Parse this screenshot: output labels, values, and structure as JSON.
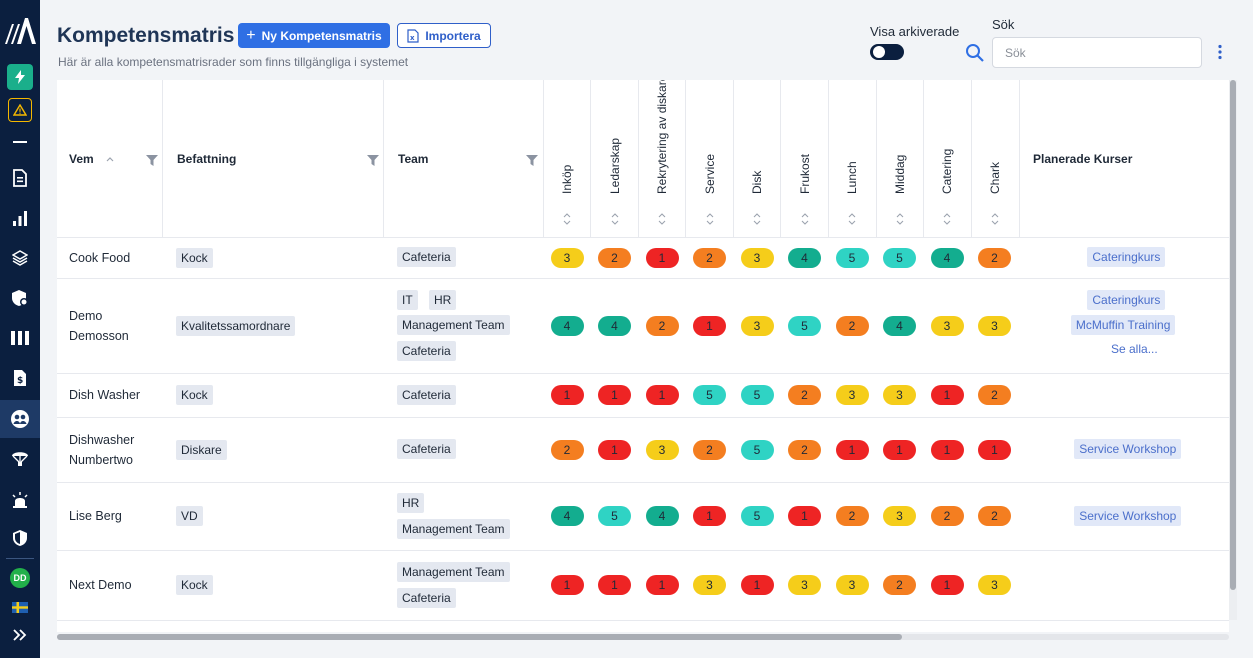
{
  "page": {
    "title": "Kompetensmatris",
    "subtitle": "Här är alla kompetensmatrisrader som finns tillgängliga i systemet",
    "new_button": "Ny Kompetensmatris",
    "import_button": "Importera",
    "show_archived_label": "Visa arkiverade",
    "show_archived": false,
    "search_label": "Sök",
    "search_placeholder": "Sök"
  },
  "sidebar": {
    "avatar_initials": "DD",
    "active_item": "competence-matrix"
  },
  "table": {
    "headers": {
      "who": "Vem",
      "position": "Befattning",
      "team": "Team",
      "courses": "Planerade Kurser"
    },
    "skills": [
      "Inköp",
      "Ledarskap",
      "Rekrytering av diskare",
      "Service",
      "Disk",
      "Frukost",
      "Lunch",
      "Middag",
      "Catering",
      "Chark"
    ],
    "rows": [
      {
        "name_lines": [
          "Cook Food"
        ],
        "position": "Kock",
        "teams": [
          [
            "Cafeteria"
          ]
        ],
        "scores": [
          3,
          2,
          1,
          2,
          3,
          4,
          5,
          5,
          4,
          2
        ],
        "courses": [
          "Cateringkurs"
        ],
        "see_all": ""
      },
      {
        "name_lines": [
          "Demo",
          "Demosson"
        ],
        "position": "Kvalitetssamordnare",
        "teams": [
          [
            "IT",
            "HR"
          ],
          [
            "Management Team"
          ],
          [
            "Cafeteria"
          ]
        ],
        "scores": [
          4,
          4,
          2,
          1,
          3,
          5,
          2,
          4,
          3,
          3
        ],
        "courses": [
          "Cateringkurs",
          "McMuffin Training"
        ],
        "see_all": "Se alla..."
      },
      {
        "name_lines": [
          "Dish Washer"
        ],
        "position": "Kock",
        "teams": [
          [
            "Cafeteria"
          ]
        ],
        "scores": [
          1,
          1,
          1,
          5,
          5,
          2,
          3,
          3,
          1,
          2
        ],
        "courses": [],
        "see_all": ""
      },
      {
        "name_lines": [
          "Dishwasher",
          "Numbertwo"
        ],
        "position": "Diskare",
        "teams": [
          [
            "Cafeteria"
          ]
        ],
        "scores": [
          2,
          1,
          3,
          2,
          5,
          2,
          1,
          1,
          1,
          1
        ],
        "courses": [
          "Service Workshop"
        ],
        "see_all": ""
      },
      {
        "name_lines": [
          "Lise Berg"
        ],
        "position": "VD",
        "teams": [
          [
            "HR"
          ],
          [
            "Management Team"
          ]
        ],
        "scores": [
          4,
          5,
          4,
          1,
          5,
          1,
          2,
          3,
          2,
          2
        ],
        "courses": [
          "Service Workshop"
        ],
        "see_all": ""
      },
      {
        "name_lines": [
          "Next Demo"
        ],
        "position": "Kock",
        "teams": [
          [
            "Management Team"
          ],
          [
            "Cafeteria"
          ]
        ],
        "scores": [
          1,
          1,
          1,
          3,
          1,
          3,
          3,
          2,
          1,
          3
        ],
        "courses": [],
        "see_all": ""
      }
    ]
  },
  "score_colors": {
    "1": "#ee2424",
    "2": "#f47e20",
    "3": "#f5cd1a",
    "4": "#13ad8f",
    "5": "#2fd3c4"
  },
  "colors": {
    "sidebar": "#0b1f3f",
    "primary": "#2f6fe4",
    "title": "#1f3556"
  }
}
